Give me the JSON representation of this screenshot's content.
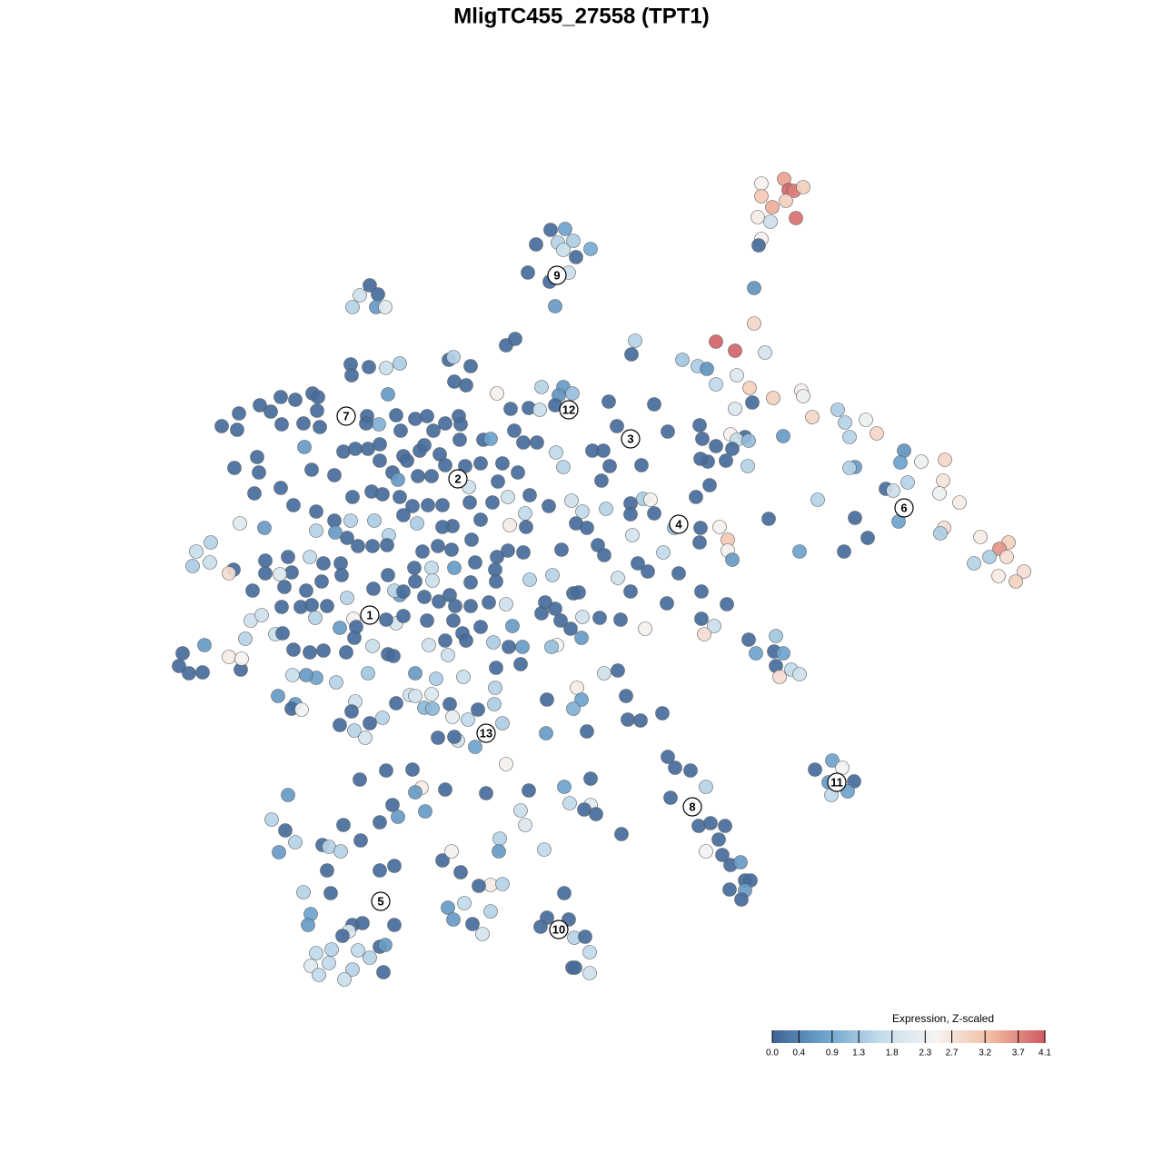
{
  "chart_data": {
    "type": "scatter",
    "title": "MligTC455_27558 (TPT1)",
    "x": [
      198,
      223,
      228,
      234,
      244,
      198,
      210,
      225,
      194,
      208,
      236,
      198,
      195,
      190,
      190,
      148,
      169,
      202,
      111,
      128,
      138,
      171,
      148,
      185,
      211,
      242,
      244,
      169,
      188,
      254,
      282,
      290,
      313,
      295,
      325,
      222,
      164,
      180,
      171,
      184,
      148,
      166,
      183,
      159,
      139,
      131,
      355,
      351,
      301,
      295,
      374,
      400,
      398,
      359,
      335,
      343,
      394,
      416,
      260,
      349,
      399,
      395,
      439,
      470,
      460,
      449,
      468,
      432,
      487,
      478,
      459,
      301,
      315,
      289,
      240,
      206,
      -34,
      -18,
      -26,
      -50,
      -9,
      -20,
      10,
      -6,
      -59,
      -14,
      -35,
      -29,
      -233,
      -244,
      -224,
      -252,
      -226,
      -216,
      -83,
      -73,
      -146,
      -141,
      -122,
      -254,
      -234,
      -215,
      -200,
      -253,
      -140,
      -127,
      -213,
      -93,
      -78,
      -44,
      -20,
      -10,
      -25,
      -58,
      -46,
      -29,
      30,
      80,
      55,
      59,
      -396,
      -377,
      -379,
      -354,
      -342,
      -331,
      -315,
      -296,
      -290,
      -291,
      -330,
      -306,
      -288,
      -357,
      -382,
      -355,
      -360,
      -331,
      -305,
      -297,
      -272,
      -262,
      -249,
      -235,
      -222,
      -236,
      -223,
      -237,
      -204,
      -183,
      -170,
      -150,
      -135,
      -133,
      -199,
      -163,
      -134,
      -108,
      -100,
      -74,
      -64,
      -49,
      -222,
      -196,
      -178,
      -173,
      -192,
      -156,
      -150,
      -208,
      -202,
      -180,
      -165,
      -128,
      -111,
      -87,
      -70,
      -92,
      -124,
      -231,
      -219,
      -200,
      -252,
      -186,
      -169,
      -153,
      -123,
      -98,
      -81,
      -57,
      -36,
      -62,
      -79,
      -111,
      -121,
      -142,
      -153,
      -181,
      -196,
      -212,
      -230,
      -214,
      -246,
      -258,
      -254,
      -228,
      -272,
      -271,
      -292,
      -317,
      -292,
      -349,
      -376,
      -408,
      -424,
      -428,
      -409,
      -383,
      -388,
      -348,
      -323,
      -319,
      -348,
      -332,
      -362,
      -299,
      -284,
      -265,
      -264,
      -303,
      -286,
      -175,
      -158,
      -143,
      -140,
      -117,
      -93,
      -81,
      -64,
      -61,
      -22,
      -6,
      6,
      18,
      25,
      -184,
      -165,
      -95,
      -32,
      -57,
      -94,
      -122,
      -164,
      -183,
      -200,
      -229,
      -213,
      -206,
      -196,
      -145,
      -173,
      -139,
      -157,
      -122,
      -102,
      -83,
      -40,
      -29,
      -9,
      -3,
      -327,
      -330,
      -309,
      -297,
      -280,
      -258,
      -293,
      -266,
      -251,
      -248,
      -364,
      -352,
      -337,
      -329,
      -370,
      -415,
      -439,
      -443,
      -432,
      -417,
      -375,
      -388,
      -374,
      -317,
      -299,
      -284,
      -259,
      -250,
      -230,
      -213,
      -207,
      -204,
      -215,
      -196,
      -170,
      -141,
      -131,
      -127,
      -111,
      -97,
      -80,
      -76,
      -65,
      -44,
      -23,
      -12,
      0,
      1,
      20,
      43,
      -27,
      -33,
      -168,
      -147,
      -150,
      -67,
      -94,
      -130,
      -160,
      -183,
      -235,
      -270,
      -292,
      -303,
      -318,
      -334,
      -315,
      -319,
      -308,
      -249,
      -253,
      -204,
      -189,
      -183,
      -165,
      -173,
      -164,
      -145,
      -95,
      -96,
      -114,
      -142,
      -125,
      -136,
      -158,
      -140,
      -117,
      -87,
      -38,
      -5,
      0,
      -9,
      6,
      -39,
      25,
      40,
      49,
      51,
      65,
      89,
      -219,
      -233,
      -250,
      -238,
      -266,
      -83,
      12,
      24,
      31,
      22,
      39,
      66,
      95,
      130,
      133,
      54,
      54,
      68,
      76,
      80,
      56,
      1,
      27,
      -11,
      -28,
      -20,
      126,
      141,
      131,
      130,
      152,
      161,
      161,
      166,
      102,
      90,
      62,
      73,
      107,
      40,
      54,
      94,
      132,
      160,
      132,
      146,
      135,
      70,
      184,
      214,
      192,
      212,
      222,
      214,
      231,
      240,
      218,
      95,
      103,
      120,
      137,
      98,
      129,
      142,
      158,
      151,
      137,
      155,
      164,
      175,
      180,
      186,
      163,
      180,
      176,
      44,
      276,
      257,
      287,
      272,
      300,
      275,
      293,
      -244,
      -215,
      -186,
      -176,
      -183,
      -150,
      -208,
      -222,
      -202,
      -172,
      -105,
      -58,
      -19,
      10,
      -13,
      10,
      3,
      16,
      -67,
      -62,
      -41,
      -90,
      -91,
      -323,
      -341,
      -326,
      -315,
      -333,
      -285,
      -278,
      -265,
      -262,
      -243,
      -206,
      -222,
      -153,
      -143,
      -133,
      -100,
      -87,
      -113,
      -280,
      -306,
      -276,
      -298,
      -301,
      -252,
      -241,
      -256,
      -263,
      -206,
      -246,
      -233,
      -222,
      -216,
      -147,
      -129,
      -141,
      -120,
      -100,
      -109,
      -275,
      -292,
      -298,
      -278,
      -252,
      -289,
      -261,
      -218,
      -19,
      -38,
      -14,
      -45,
      -8,
      4,
      9,
      -10,
      -7,
      9
    ],
    "y": [
      438,
      443,
      431,
      430,
      434,
      424,
      412,
      419,
      401,
      396,
      400,
      377,
      370,
      323,
      284,
      264,
      254,
      252,
      244,
      237,
      234,
      227,
      217,
      213,
      202,
      210,
      204,
      190,
      197,
      181,
      189,
      175,
      178,
      159,
      163,
      160,
      162,
      159,
      156,
      155,
      149,
      146,
      127,
      133,
      132,
      135,
      144,
      131,
      126,
      125,
      132,
      134,
      111,
      109,
      102,
      100,
      97,
      87,
      90,
      66,
      59,
      53,
      49,
      43,
      36,
      27,
      27,
      20,
      11,
      0,
      6,
      70,
      48,
      33,
      33,
      69,
      387,
      388,
      373,
      371,
      375,
      365,
      366,
      357,
      340,
      340,
      330,
      303,
      326,
      315,
      316,
      302,
      302,
      302,
      260,
      267,
      244,
      247,
      237,
      239,
      236,
      235,
      240,
      227,
      220,
      216,
      206,
      207,
      190,
      214,
      214,
      207,
      205,
      191,
      189,
      194,
      198,
      195,
      250,
      265,
      171,
      185,
      167,
      194,
      187,
      203,
      200,
      207,
      203,
      188,
      173,
      174,
      170,
      137,
      125,
      120,
      97,
      103,
      148,
      123,
      117,
      143,
      146,
      146,
      151,
      182,
      173,
      174,
      183,
      179,
      182,
      174,
      182,
      173,
      166,
      166,
      156,
      156,
      157,
      166,
      153,
      153,
      133,
      138,
      144,
      150,
      133,
      140,
      128,
      120,
      112,
      116,
      116,
      127,
      130,
      130,
      120,
      110,
      104,
      99,
      96,
      93,
      93,
      83,
      84,
      84,
      87,
      87,
      93,
      95,
      83,
      75,
      62,
      68,
      46,
      61,
      60,
      64,
      73,
      51,
      39,
      40,
      39,
      48,
      67,
      67,
      67,
      54,
      56,
      84,
      77,
      59,
      64,
      43,
      33,
      17,
      21,
      13,
      9,
      23,
      27,
      10,
      9,
      8,
      -10,
      27,
      20,
      20,
      7,
      -10,
      0,
      33,
      39,
      35,
      15,
      21,
      27,
      34,
      32,
      60,
      35,
      64,
      59,
      40,
      29,
      15,
      15,
      13,
      7,
      2,
      0,
      -1,
      1,
      0,
      -15,
      -8,
      7,
      -10,
      -11,
      -15,
      -17,
      -27,
      -22,
      -27,
      -23,
      -25,
      -23,
      -30,
      -13,
      -12,
      -6,
      -28,
      -28,
      -26,
      -27,
      -18,
      -40,
      -51,
      -41,
      -50,
      -43,
      -37,
      -58,
      -57,
      -63,
      -70,
      -79,
      -93,
      -101,
      -100,
      -97,
      -83,
      -85,
      -75,
      -78,
      -76,
      -78,
      -62,
      -71,
      -80,
      -82,
      -46,
      -42,
      -38,
      -43,
      -43,
      -57,
      -65,
      -50,
      -67,
      -72,
      -49,
      -72,
      -35,
      -43,
      -52,
      -62,
      -39,
      -40,
      -42,
      -70,
      -72,
      -70,
      -81,
      -65,
      -91,
      -95,
      -105,
      -107,
      -101,
      -101,
      -111,
      -106,
      -103,
      -103,
      -126,
      -135,
      -140,
      -141,
      -132,
      -143,
      -134,
      -125,
      -126,
      -124,
      -139,
      -140,
      -135,
      -117,
      -135,
      -141,
      -149,
      -152,
      -175,
      -172,
      -171,
      -182,
      -156,
      -130,
      -117,
      -130,
      -140,
      -165,
      -167,
      -101,
      -98,
      -126,
      -152,
      -153,
      -145,
      -150,
      -156,
      -164,
      -172,
      -158,
      -201,
      144,
      144,
      127,
      111,
      171,
      128,
      165,
      172,
      157,
      86,
      74,
      91,
      90,
      75,
      51,
      77,
      80,
      89,
      142,
      126,
      93,
      106,
      59,
      43,
      60,
      46,
      34,
      24,
      59,
      32,
      20,
      11,
      9,
      4,
      -11,
      -24,
      -11,
      -25,
      -41,
      -49,
      -58,
      -52,
      -64,
      -60,
      -79,
      -77,
      -79,
      -93,
      -97,
      -102,
      -105,
      -193,
      -205,
      -208,
      -226,
      -238,
      -269,
      -266,
      -269,
      -284,
      -297,
      -301,
      -312,
      -309,
      -329,
      -329,
      -339,
      -340,
      -350,
      -278,
      -197,
      -207,
      -205,
      -221,
      -220,
      -235,
      -231,
      -218,
      -208,
      -207,
      -227,
      -232,
      -229,
      -246,
      -265,
      -259,
      -253,
      -233,
      -230,
      -226,
      -217,
      -244,
      -246,
      -251,
      -256,
      -252,
      -268,
      -295,
      -283,
      -297,
      -235,
      -262,
      -274,
      -287,
      -298,
      -290,
      -292,
      -297,
      -268,
      -285,
      -313,
      -318,
      -307,
      -297,
      -320,
      -334,
      -333,
      -335,
      -318,
      -342,
      -343,
      -366,
      -378,
      -378,
      -376,
      -385,
      -390,
      -378,
      -406,
      -414,
      -402,
      -400,
      -359,
      -354,
      -372,
      -377,
      -363,
      -388,
      -405,
      -409,
      -423,
      -420,
      -427,
      -433,
      -438,
      -430,
      -343,
      -370,
      -372,
      -380,
      -392,
      -391,
      -408,
      -425,
      -425,
      -431
    ],
    "values": [
      2.5,
      3.5,
      4.0,
      3.8,
      3.0,
      3.1,
      3.4,
      3.0,
      2.6,
      1.8,
      3.9,
      2.5,
      0.1,
      0.6,
      2.9,
      4.0,
      4.0,
      1.9,
      1.3,
      1.4,
      0.6,
      2.0,
      1.6,
      3.0,
      3.0,
      2.5,
      2.3,
      2.0,
      0.1,
      2.9,
      1.4,
      1.5,
      2.3,
      1.5,
      2.9,
      0.7,
      2.5,
      0.1,
      1.7,
      1.2,
      0.1,
      0.1,
      1.5,
      0.1,
      0.1,
      0.1,
      0.6,
      0.8,
      0.7,
      1.5,
      2.3,
      2.9,
      2.7,
      1.5,
      0.1,
      1.8,
      2.3,
      2.6,
      1.5,
      0.8,
      2.8,
      1.4,
      2.6,
      3.0,
      3.6,
      1.4,
      2.8,
      1.5,
      2.8,
      3.0,
      2.6,
      0.1,
      0.1,
      0.1,
      0.8,
      0.1,
      0.1,
      0.8,
      1.5,
      0.1,
      1.4,
      1.7,
      0.9,
      0.1,
      0.1,
      1.7,
      0.1,
      0.7,
      0.1,
      1.8,
      0.1,
      1.5,
      0.7,
      2.1,
      0.1,
      0.1,
      0.1,
      1.5,
      0.1,
      0.1,
      0.1,
      1.7,
      1.4,
      0.1,
      0.1,
      0.1,
      0.7,
      2.5,
      0.1,
      1.5,
      0.7,
      1.2,
      0.6,
      0.1,
      1.7,
      0.1,
      0.1,
      0.1,
      0.1,
      1.5,
      0.1,
      0.1,
      0.1,
      0.1,
      0.1,
      0.1,
      0.1,
      0.1,
      0.1,
      0.1,
      0.1,
      0.1,
      0.1,
      0.1,
      0.1,
      0.1,
      0.1,
      0.1,
      0.7,
      0.1,
      0.1,
      0.1,
      0.1,
      0.1,
      0.1,
      0.1,
      1.0,
      0.1,
      0.1,
      0.1,
      0.1,
      0.1,
      0.1,
      0.1,
      0.1,
      0.1,
      0.1,
      0.1,
      0.8,
      0.1,
      0.1,
      0.1,
      0.1,
      0.1,
      0.1,
      0.1,
      0.1,
      0.1,
      0.1,
      0.1,
      0.7,
      0.1,
      0.1,
      0.1,
      0.1,
      0.1,
      0.1,
      0.1,
      1.8,
      0.1,
      0.1,
      0.1,
      0.1,
      0.1,
      0.1,
      0.1,
      0.1,
      0.1,
      1.8,
      0.1,
      0.1,
      1.6,
      2.6,
      0.1,
      0.1,
      0.1,
      0.1,
      1.4,
      0.1,
      1.5,
      0.1,
      0.1,
      0.1,
      0.1,
      1.5,
      1.4,
      0.1,
      0.7,
      1.5,
      0.1,
      0.1,
      0.7,
      2.1,
      1.5,
      1.7,
      1.4,
      1.7,
      0.1,
      2.8,
      0.1,
      0.1,
      0.1,
      0.1,
      2.0,
      0.1,
      1.6,
      0.1,
      0.1,
      0.1,
      0.1,
      0.1,
      0.1,
      0.1,
      0.1,
      0.7,
      0.1,
      0.1,
      0.1,
      0.1,
      0.1,
      0.1,
      0.1,
      0.1,
      0.1,
      0.1,
      0.1,
      1.6,
      0.1,
      1.5,
      1.5,
      0.1,
      0.1,
      1.7,
      0.1,
      0.7,
      0.1,
      0.1,
      1.5,
      0.1,
      0.1,
      0.1,
      0.1,
      0.1,
      0.1,
      0.1,
      1.8,
      0.1,
      0.1,
      0.1,
      0.1,
      0.1,
      0.1,
      0.1,
      0.1,
      0.1,
      1.5,
      1.5,
      0.7,
      2.5,
      0.1,
      1.8,
      1.8,
      1.7,
      0.1,
      1.5,
      0.7,
      0.1,
      0.1,
      0.1,
      0.1,
      0.1,
      2.6,
      2.5,
      0.1,
      0.1,
      0.1,
      0.1,
      0.1,
      1.7,
      0.1,
      0.1,
      1.9,
      0.1,
      0.1,
      0.1,
      0.1,
      0.1,
      0.1,
      0.1,
      1.4,
      0.1,
      0.7,
      0.7,
      0.1,
      0.1,
      0.1,
      0.7,
      1.8,
      0.1,
      0.1,
      2.4,
      1.2,
      1.8,
      1.7,
      0.1,
      0.1,
      0.1,
      1.7,
      1.4,
      0.7,
      1.3,
      1.5,
      0.8,
      0.7,
      1.7,
      0.7,
      0.7,
      0.1,
      2.4,
      1.8,
      0.1,
      0.1,
      1.8,
      1.9,
      2.0,
      1.1,
      1.1,
      0.1,
      1.5,
      1.4,
      0.1,
      2.2,
      1.6,
      1.8,
      0.1,
      0.1,
      0.8,
      1.4,
      0.1,
      2.6,
      0.8,
      1.0,
      0.1,
      0.7,
      1.8,
      0.1,
      0.1,
      0.1,
      0.1,
      0.1,
      1.5,
      0.1,
      1.5,
      1.9,
      0.1,
      2.5,
      0.1,
      0.1,
      0.1,
      0.1,
      0.1,
      0.1,
      0.1,
      0.1,
      0.1,
      0.1,
      0.1,
      1.4,
      2.5,
      0.1,
      1.9,
      1.6,
      1.5,
      1.8,
      1.6,
      1.5,
      0.1,
      0.1,
      0.1,
      0.1,
      2.5,
      3.1,
      2.5,
      0.7,
      1.2,
      1.6,
      0.1,
      0.1,
      0.1,
      1.8,
      0.1,
      0.1,
      0.1,
      0.1,
      0.1,
      1.7,
      2.8,
      2.5,
      0.1,
      1.3,
      0.8,
      0.1,
      0.8,
      0.1,
      1.6,
      1.8,
      2.8,
      0.1,
      0.1,
      0.1,
      1.5,
      0.1,
      0.1,
      0.1,
      0.1,
      0.1,
      2.4,
      0.1,
      0.1,
      0.7,
      0.1,
      0.1,
      0.1,
      0.7,
      0.1,
      0.1,
      0.8,
      0.1,
      2.4,
      0.7,
      0.1,
      1.6,
      0.8,
      0.1,
      0.1,
      0.1,
      2.6,
      0.7,
      0.1,
      0.1,
      0.1,
      0.7,
      0.7,
      0.1,
      0.1,
      0.8,
      0.1,
      1.6,
      2.1,
      0.1,
      0.1,
      1.7,
      2.0,
      1.6,
      1.5,
      0.7,
      0.7,
      1.5,
      0.1,
      1.5,
      0.7,
      0.1,
      1.5,
      1.5,
      0.1,
      0.1,
      0.1,
      0.1,
      0.1,
      2.5,
      0.1,
      2.6,
      1.5,
      0.1,
      0.1,
      1.5,
      0.1,
      0.8,
      0.7,
      0.1,
      0.1,
      2.0,
      0.1,
      0.1,
      1.6,
      1.5,
      0.1,
      0.7,
      0.7,
      1.6,
      0.7,
      0.1,
      1.5,
      1.9,
      1.5,
      1.6,
      2.0,
      1.6,
      1.5,
      1.6,
      1.7,
      0.1,
      0.1,
      0.1,
      0.1,
      0.1,
      1.5,
      0.1,
      1.6,
      0.1,
      0.1,
      1.8
    ],
    "clusters": [
      {
        "label": "1",
        "x": -233,
        "y": -37
      },
      {
        "label": "2",
        "x": -136,
        "y": 113
      },
      {
        "label": "3",
        "x": 54,
        "y": 157
      },
      {
        "label": "4",
        "x": 107,
        "y": 63
      },
      {
        "label": "5",
        "x": -221,
        "y": -352
      },
      {
        "label": "6",
        "x": 355,
        "y": 81
      },
      {
        "label": "7",
        "x": -259,
        "y": 182
      },
      {
        "label": "8",
        "x": 122,
        "y": -248
      },
      {
        "label": "9",
        "x": -27,
        "y": 337
      },
      {
        "label": "10",
        "x": -25,
        "y": -383
      },
      {
        "label": "11",
        "x": 281,
        "y": -221
      },
      {
        "label": "12",
        "x": -14,
        "y": 189
      },
      {
        "label": "13",
        "x": -105,
        "y": -167
      }
    ],
    "colorbar": {
      "title": "Expression, Z-scaled",
      "lim": [
        0,
        4.1
      ],
      "ticks": [
        {
          "value": 0,
          "label": "0.0"
        },
        0.4,
        0.9,
        1.3,
        1.8,
        2.3,
        2.7,
        3.2,
        3.7,
        4.1
      ],
      "colors": [
        "#3f6494",
        "#6ea5cf",
        "#c5ddec",
        "#f6f4f2",
        "#f3bda3",
        "#cf5861"
      ]
    }
  }
}
